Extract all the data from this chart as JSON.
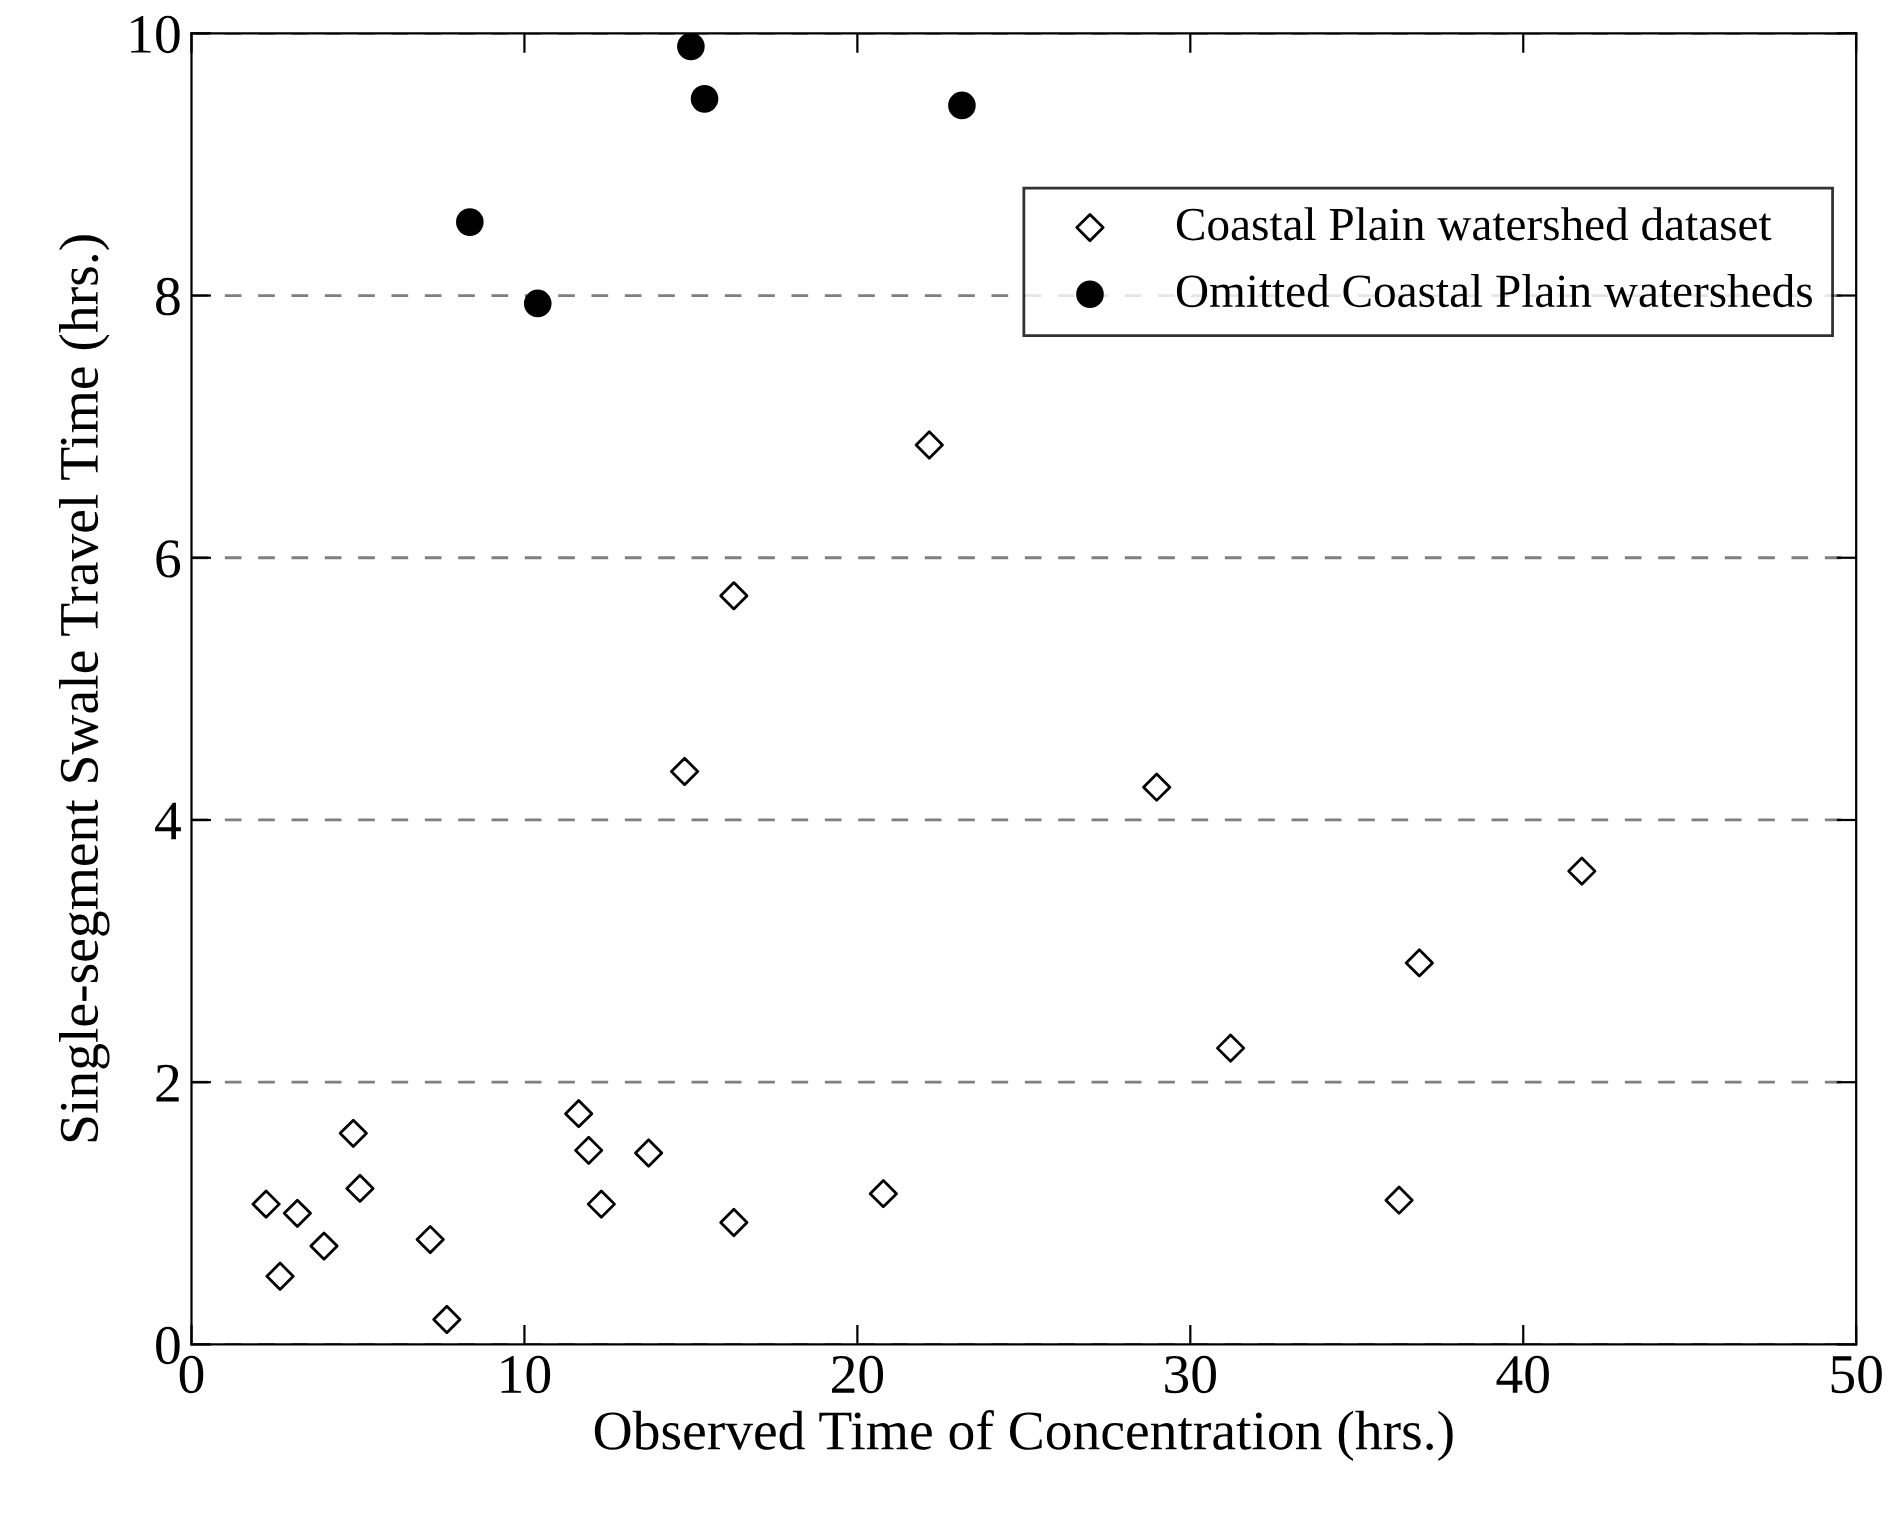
{
  "chart_data": {
    "type": "scatter",
    "xlabel": "Observed Time of Concentration (hrs.)",
    "ylabel": "Single-segment Swale Travel Time (hrs.)",
    "xlim": [
      0,
      50
    ],
    "ylim": [
      0,
      10
    ],
    "xticks": [
      0,
      10,
      20,
      30,
      40,
      50
    ],
    "yticks": [
      0,
      2,
      4,
      6,
      8,
      10
    ],
    "grid": "y",
    "legend": "top right",
    "series": [
      {
        "name": "Coastal Plain watershed dataset",
        "color": "#000000",
        "marker": "diamond",
        "x": [
          2.24,
          2.66,
          3.18,
          3.98,
          4.86,
          5.06,
          7.17,
          7.67,
          11.63,
          11.93,
          12.31,
          13.73,
          16.29,
          20.78,
          22.16,
          16.29,
          14.81,
          28.99,
          41.76,
          36.88,
          31.21,
          36.27
        ],
        "values": [
          1.07,
          0.52,
          1.0,
          0.75,
          1.61,
          1.19,
          0.8,
          0.19,
          1.76,
          1.48,
          1.07,
          1.46,
          0.93,
          1.15,
          6.86,
          5.71,
          4.37,
          4.25,
          3.61,
          2.91,
          2.26,
          1.1
        ]
      },
      {
        "name": "Omitted Coastal Plain watersheds",
        "color": "#000000",
        "marker": "circle",
        "x": [
          8.36,
          10.4,
          15.0,
          15.41,
          23.14
        ],
        "values": [
          8.56,
          7.94,
          9.9,
          9.5,
          9.45
        ]
      }
    ]
  }
}
